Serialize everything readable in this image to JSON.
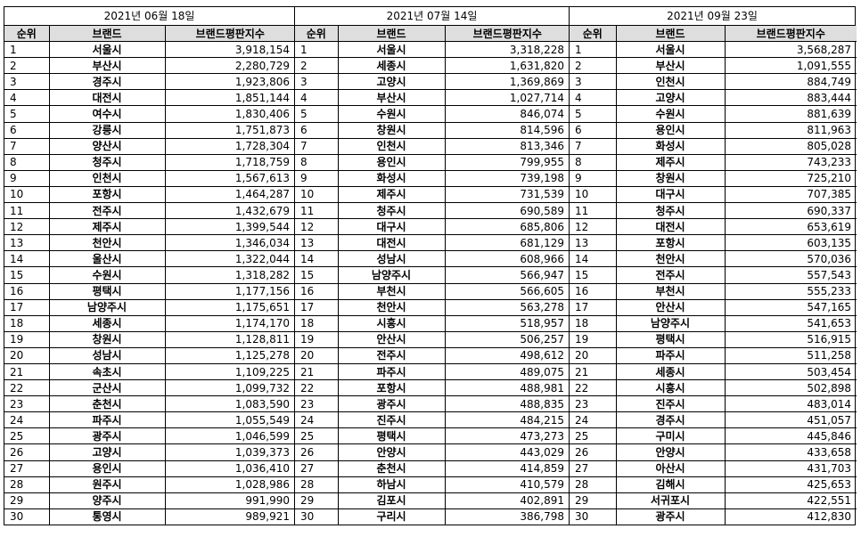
{
  "headers": {
    "rank": "순위",
    "brand": "브랜드",
    "score": "브랜드평판지수"
  },
  "blocks": [
    {
      "date": "2021년 06월 18일",
      "rows": [
        {
          "rank": "1",
          "brand": "서울시",
          "score": "3,918,154"
        },
        {
          "rank": "2",
          "brand": "부산시",
          "score": "2,280,729"
        },
        {
          "rank": "3",
          "brand": "경주시",
          "score": "1,923,806"
        },
        {
          "rank": "4",
          "brand": "대전시",
          "score": "1,851,144"
        },
        {
          "rank": "5",
          "brand": "여수시",
          "score": "1,830,406"
        },
        {
          "rank": "6",
          "brand": "강릉시",
          "score": "1,751,873"
        },
        {
          "rank": "7",
          "brand": "양산시",
          "score": "1,728,304"
        },
        {
          "rank": "8",
          "brand": "청주시",
          "score": "1,718,759"
        },
        {
          "rank": "9",
          "brand": "인천시",
          "score": "1,567,613"
        },
        {
          "rank": "10",
          "brand": "포항시",
          "score": "1,464,287"
        },
        {
          "rank": "11",
          "brand": "전주시",
          "score": "1,432,679"
        },
        {
          "rank": "12",
          "brand": "제주시",
          "score": "1,399,544"
        },
        {
          "rank": "13",
          "brand": "천안시",
          "score": "1,346,034"
        },
        {
          "rank": "14",
          "brand": "울산시",
          "score": "1,322,044"
        },
        {
          "rank": "15",
          "brand": "수원시",
          "score": "1,318,282"
        },
        {
          "rank": "16",
          "brand": "평택시",
          "score": "1,177,156"
        },
        {
          "rank": "17",
          "brand": "남양주시",
          "score": "1,175,651"
        },
        {
          "rank": "18",
          "brand": "세종시",
          "score": "1,174,170"
        },
        {
          "rank": "19",
          "brand": "창원시",
          "score": "1,128,811"
        },
        {
          "rank": "20",
          "brand": "성남시",
          "score": "1,125,278"
        },
        {
          "rank": "21",
          "brand": "속초시",
          "score": "1,109,225"
        },
        {
          "rank": "22",
          "brand": "군산시",
          "score": "1,099,732"
        },
        {
          "rank": "23",
          "brand": "춘천시",
          "score": "1,083,590"
        },
        {
          "rank": "24",
          "brand": "파주시",
          "score": "1,055,549"
        },
        {
          "rank": "25",
          "brand": "광주시",
          "score": "1,046,599"
        },
        {
          "rank": "26",
          "brand": "고양시",
          "score": "1,039,373"
        },
        {
          "rank": "27",
          "brand": "용인시",
          "score": "1,036,410"
        },
        {
          "rank": "28",
          "brand": "원주시",
          "score": "1,028,986"
        },
        {
          "rank": "29",
          "brand": "양주시",
          "score": "991,990"
        },
        {
          "rank": "30",
          "brand": "통영시",
          "score": "989,921"
        }
      ]
    },
    {
      "date": "2021년 07월 14일",
      "rows": [
        {
          "rank": "1",
          "brand": "서울시",
          "score": "3,318,228"
        },
        {
          "rank": "2",
          "brand": "세종시",
          "score": "1,631,820"
        },
        {
          "rank": "3",
          "brand": "고양시",
          "score": "1,369,869"
        },
        {
          "rank": "4",
          "brand": "부산시",
          "score": "1,027,714"
        },
        {
          "rank": "5",
          "brand": "수원시",
          "score": "846,074"
        },
        {
          "rank": "6",
          "brand": "창원시",
          "score": "814,596"
        },
        {
          "rank": "7",
          "brand": "인천시",
          "score": "813,346"
        },
        {
          "rank": "8",
          "brand": "용인시",
          "score": "799,955"
        },
        {
          "rank": "9",
          "brand": "화성시",
          "score": "739,198"
        },
        {
          "rank": "10",
          "brand": "제주시",
          "score": "731,539"
        },
        {
          "rank": "11",
          "brand": "청주시",
          "score": "690,589"
        },
        {
          "rank": "12",
          "brand": "대구시",
          "score": "685,806"
        },
        {
          "rank": "13",
          "brand": "대전시",
          "score": "681,129"
        },
        {
          "rank": "14",
          "brand": "성남시",
          "score": "608,966"
        },
        {
          "rank": "15",
          "brand": "남양주시",
          "score": "566,947"
        },
        {
          "rank": "16",
          "brand": "부천시",
          "score": "566,605"
        },
        {
          "rank": "17",
          "brand": "천안시",
          "score": "563,278"
        },
        {
          "rank": "18",
          "brand": "시흥시",
          "score": "518,957"
        },
        {
          "rank": "19",
          "brand": "안산시",
          "score": "506,257"
        },
        {
          "rank": "20",
          "brand": "전주시",
          "score": "498,612"
        },
        {
          "rank": "21",
          "brand": "파주시",
          "score": "489,075"
        },
        {
          "rank": "22",
          "brand": "포항시",
          "score": "488,981"
        },
        {
          "rank": "23",
          "brand": "광주시",
          "score": "488,835"
        },
        {
          "rank": "24",
          "brand": "진주시",
          "score": "484,215"
        },
        {
          "rank": "25",
          "brand": "평택시",
          "score": "473,273"
        },
        {
          "rank": "26",
          "brand": "안양시",
          "score": "443,029"
        },
        {
          "rank": "27",
          "brand": "춘천시",
          "score": "414,859"
        },
        {
          "rank": "28",
          "brand": "하남시",
          "score": "410,579"
        },
        {
          "rank": "29",
          "brand": "김포시",
          "score": "402,891"
        },
        {
          "rank": "30",
          "brand": "구리시",
          "score": "386,798"
        }
      ]
    },
    {
      "date": "2021년 09월 23일",
      "rows": [
        {
          "rank": "1",
          "brand": "서울시",
          "score": "3,568,287"
        },
        {
          "rank": "2",
          "brand": "부산시",
          "score": "1,091,555"
        },
        {
          "rank": "3",
          "brand": "인천시",
          "score": "884,749"
        },
        {
          "rank": "4",
          "brand": "고양시",
          "score": "883,444"
        },
        {
          "rank": "5",
          "brand": "수원시",
          "score": "881,639"
        },
        {
          "rank": "6",
          "brand": "용인시",
          "score": "811,963"
        },
        {
          "rank": "7",
          "brand": "화성시",
          "score": "805,028"
        },
        {
          "rank": "8",
          "brand": "제주시",
          "score": "743,233"
        },
        {
          "rank": "9",
          "brand": "창원시",
          "score": "725,210"
        },
        {
          "rank": "10",
          "brand": "대구시",
          "score": "707,385"
        },
        {
          "rank": "11",
          "brand": "청주시",
          "score": "690,337"
        },
        {
          "rank": "12",
          "brand": "대전시",
          "score": "653,619"
        },
        {
          "rank": "13",
          "brand": "포항시",
          "score": "603,135"
        },
        {
          "rank": "14",
          "brand": "천안시",
          "score": "570,036"
        },
        {
          "rank": "15",
          "brand": "전주시",
          "score": "557,543"
        },
        {
          "rank": "16",
          "brand": "부천시",
          "score": "555,233"
        },
        {
          "rank": "17",
          "brand": "안산시",
          "score": "547,165"
        },
        {
          "rank": "18",
          "brand": "남양주시",
          "score": "541,653"
        },
        {
          "rank": "19",
          "brand": "평택시",
          "score": "516,915"
        },
        {
          "rank": "20",
          "brand": "파주시",
          "score": "511,258"
        },
        {
          "rank": "21",
          "brand": "세종시",
          "score": "503,454"
        },
        {
          "rank": "22",
          "brand": "시흥시",
          "score": "502,898"
        },
        {
          "rank": "23",
          "brand": "진주시",
          "score": "483,014"
        },
        {
          "rank": "24",
          "brand": "경주시",
          "score": "451,057"
        },
        {
          "rank": "25",
          "brand": "구미시",
          "score": "445,846"
        },
        {
          "rank": "26",
          "brand": "안양시",
          "score": "433,658"
        },
        {
          "rank": "27",
          "brand": "아산시",
          "score": "431,703"
        },
        {
          "rank": "28",
          "brand": "김해시",
          "score": "425,653"
        },
        {
          "rank": "29",
          "brand": "서귀포시",
          "score": "422,551"
        },
        {
          "rank": "30",
          "brand": "광주시",
          "score": "412,830"
        }
      ]
    }
  ]
}
